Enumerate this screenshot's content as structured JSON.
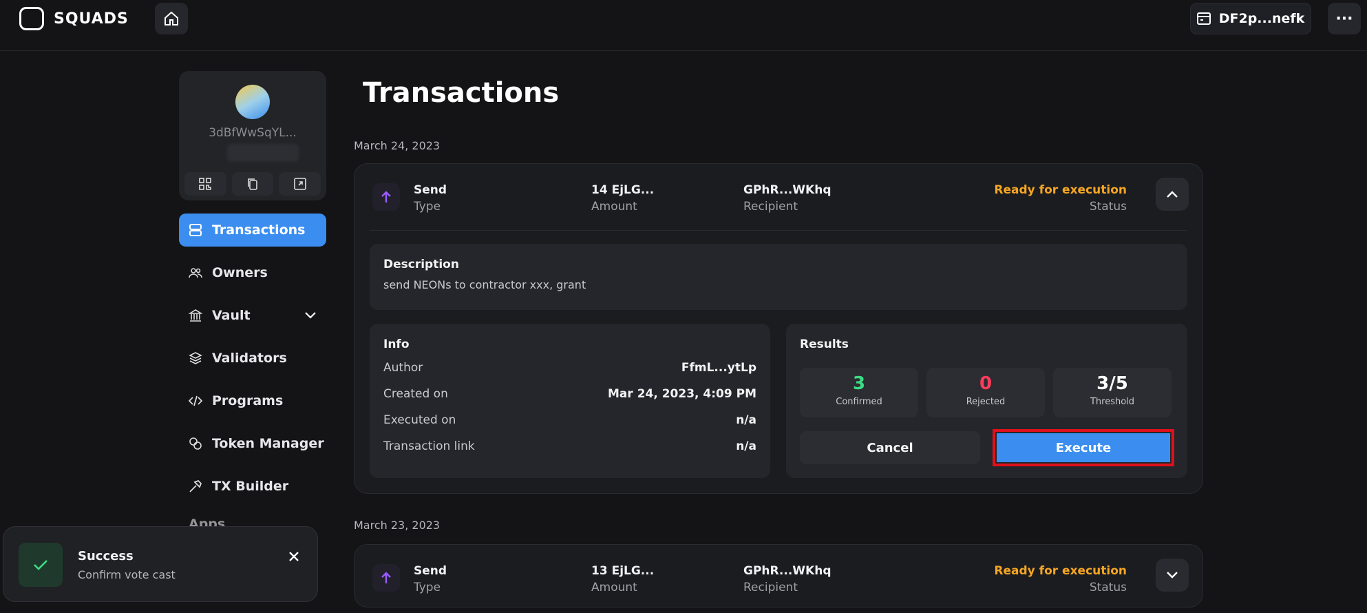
{
  "app": {
    "brand": "SQUADS",
    "wallet": "DF2p...nefk",
    "more_label": "···"
  },
  "vault_card": {
    "name": "3dBfWwSqYL..."
  },
  "nav": {
    "items": [
      {
        "label": "Transactions",
        "icon": "layers-icon",
        "active": true
      },
      {
        "label": "Owners",
        "icon": "users-icon"
      },
      {
        "label": "Vault",
        "icon": "bank-icon",
        "has_submenu": true
      },
      {
        "label": "Validators",
        "icon": "stack-icon"
      },
      {
        "label": "Programs",
        "icon": "code-icon"
      },
      {
        "label": "Token Manager",
        "icon": "coins-icon"
      },
      {
        "label": "TX Builder",
        "icon": "hammer-icon"
      },
      {
        "label": "Apps",
        "icon": "grid-icon"
      }
    ]
  },
  "page": {
    "title": "Transactions"
  },
  "groups": [
    {
      "date": "March 24, 2023",
      "tx": {
        "type_value": "Send",
        "type_label": "Type",
        "amount_value": "14 EjLG...",
        "amount_label": "Amount",
        "recipient_value": "GPhR...WKhq",
        "recipient_label": "Recipient",
        "status_value": "Ready for execution",
        "status_label": "Status",
        "expanded": true,
        "description": {
          "heading": "Description",
          "text": "send NEONs to contractor xxx, grant"
        },
        "info": {
          "heading": "Info",
          "rows": [
            {
              "key": "Author",
              "value": "FfmL...ytLp"
            },
            {
              "key": "Created on",
              "value": "Mar 24, 2023, 4:09 PM"
            },
            {
              "key": "Executed on",
              "value": "n/a"
            },
            {
              "key": "Transaction link",
              "value": "n/a"
            }
          ]
        },
        "results": {
          "heading": "Results",
          "confirmed": "3",
          "confirmed_label": "Confirmed",
          "rejected": "0",
          "rejected_label": "Rejected",
          "threshold": "3/5",
          "threshold_label": "Threshold",
          "cancel_label": "Cancel",
          "execute_label": "Execute"
        }
      }
    },
    {
      "date": "March 23, 2023",
      "tx": {
        "type_value": "Send",
        "type_label": "Type",
        "amount_value": "13 EjLG...",
        "amount_label": "Amount",
        "recipient_value": "GPhR...WKhq",
        "recipient_label": "Recipient",
        "status_value": "Ready for execution",
        "status_label": "Status",
        "expanded": false
      }
    }
  ],
  "toast": {
    "title": "Success",
    "message": "Confirm vote cast"
  },
  "colors": {
    "accent": "#3b8ef0",
    "status": "#f5a623",
    "confirmed": "#3ddc84",
    "rejected": "#ff3b5c",
    "highlight": "#e0101b"
  }
}
